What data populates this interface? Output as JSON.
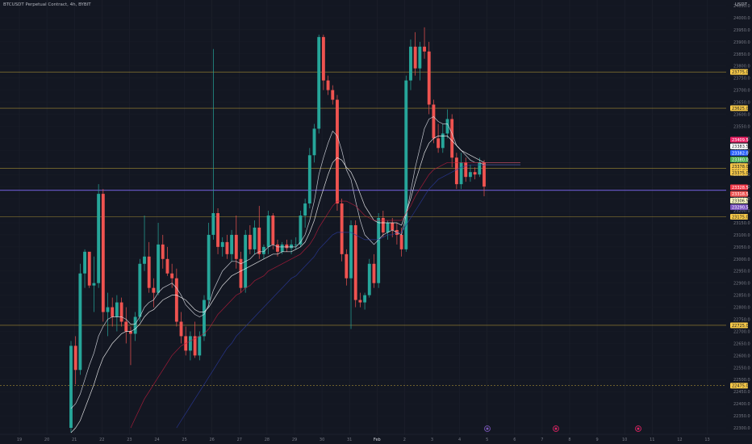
{
  "header": {
    "symbol": "BTCUSDT Perpetual Contract, 4h, BYBIT",
    "currency": "USDT"
  },
  "price_scale": {
    "ticks": [
      "24050.0",
      "24000.0",
      "23950.0",
      "23900.0",
      "23850.0",
      "23800.0",
      "23750.0",
      "23700.0",
      "23650.0",
      "23600.0",
      "23550.0",
      "23500.0",
      "23450.0",
      "23400.0",
      "23350.0",
      "23300.0",
      "23250.0",
      "23200.0",
      "23150.0",
      "23100.0",
      "23050.0",
      "23000.0",
      "22950.0",
      "22900.0",
      "22850.0",
      "22800.0",
      "22750.0",
      "22700.0",
      "22650.0",
      "22600.0",
      "22550.0",
      "22500.0",
      "22450.0",
      "22400.0",
      "22350.0",
      "22300.0"
    ],
    "tick_values": [
      24050,
      24000,
      23950,
      23900,
      23850,
      23800,
      23750,
      23700,
      23650,
      23600,
      23550,
      23500,
      23450,
      23400,
      23350,
      23300,
      23250,
      23200,
      23150,
      23100,
      23050,
      23000,
      22950,
      22900,
      22850,
      22800,
      22750,
      22700,
      22650,
      22600,
      22550,
      22500,
      22450,
      22400,
      22350,
      22300
    ]
  },
  "time_scale": {
    "labels": [
      "19",
      "20",
      "21",
      "22",
      "23",
      "24",
      "25",
      "26",
      "27",
      "28",
      "29",
      "30",
      "31",
      "Feb",
      "2",
      "3",
      "4",
      "5",
      "6",
      "7",
      "8",
      "9",
      "10",
      "11",
      "12",
      "13"
    ]
  },
  "level_lines": [
    {
      "price": 23775,
      "label": "23775.0",
      "color": "#d4b23a",
      "dashed": false
    },
    {
      "price": 23625,
      "label": "23625.0",
      "color": "#d4b23a",
      "dashed": false
    },
    {
      "price": 23375,
      "label": "23375.0",
      "color": "#d4b23a",
      "dashed": false
    },
    {
      "price": 23175,
      "label": "23175.0",
      "color": "#d4b23a",
      "dashed": false
    },
    {
      "price": 22725,
      "label": "22725.0",
      "color": "#d4b23a",
      "dashed": false
    },
    {
      "price": 22475,
      "label": "22475.0",
      "color": "#d4b23a",
      "dashed": true
    },
    {
      "price": 23285,
      "label": "",
      "color": "#6a5acd",
      "dashed": false
    }
  ],
  "price_badges": [
    {
      "label": "23409.5",
      "bg": "#e91e63",
      "fg": "#ffffff"
    },
    {
      "label": "23383.5",
      "bg": "#ffffff",
      "fg": "#131722"
    },
    {
      "label": "23382.0",
      "bg": "#2962ff",
      "fg": "#ffffff"
    },
    {
      "label": "23380.0",
      "bg": "#4caf50",
      "fg": "#ffffff"
    },
    {
      "label": "23378.0",
      "bg": "#f7c948",
      "fg": "#131722"
    },
    {
      "label": "23375.0",
      "bg": "#f7c948",
      "fg": "#131722"
    },
    {
      "label": "23328.5",
      "bg": "#f23645",
      "fg": "#ffffff"
    },
    {
      "label": "23318.5",
      "bg": "#ef5350",
      "fg": "#ffffff"
    },
    {
      "label": "23306.5",
      "bg": "#f7f7c0",
      "fg": "#131722"
    },
    {
      "label": "23290.5",
      "bg": "#7e57c2",
      "fg": "#ffffff"
    }
  ],
  "chart_data": {
    "type": "candlestick",
    "timeframe": "4h",
    "x_labels": [
      "19",
      "20",
      "21",
      "22",
      "23",
      "24",
      "25",
      "26",
      "27",
      "28",
      "29",
      "30",
      "31",
      "Feb",
      "2",
      "3",
      "4",
      "5",
      "6",
      "7",
      "8",
      "9",
      "10",
      "11",
      "12",
      "13"
    ],
    "ylim": [
      22275,
      24075
    ],
    "colors": {
      "up": "#26a69a",
      "down": "#ef5350"
    },
    "candles": [
      {
        "o": 22300,
        "h": 22660,
        "l": 22280,
        "c": 22640
      },
      {
        "o": 22640,
        "h": 22680,
        "l": 22480,
        "c": 22540
      },
      {
        "o": 22540,
        "h": 22980,
        "l": 22520,
        "c": 22940
      },
      {
        "o": 22940,
        "h": 23040,
        "l": 22880,
        "c": 23030
      },
      {
        "o": 23030,
        "h": 23020,
        "l": 22880,
        "c": 22890
      },
      {
        "o": 22890,
        "h": 23010,
        "l": 22780,
        "c": 22900
      },
      {
        "o": 22900,
        "h": 23310,
        "l": 22880,
        "c": 23270
      },
      {
        "o": 23270,
        "h": 23290,
        "l": 22740,
        "c": 22780
      },
      {
        "o": 22780,
        "h": 22860,
        "l": 22680,
        "c": 22800
      },
      {
        "o": 22800,
        "h": 22840,
        "l": 22720,
        "c": 22760
      },
      {
        "o": 22760,
        "h": 22850,
        "l": 22700,
        "c": 22820
      },
      {
        "o": 22820,
        "h": 22840,
        "l": 22720,
        "c": 22740
      },
      {
        "o": 22740,
        "h": 22800,
        "l": 22650,
        "c": 22700
      },
      {
        "o": 22700,
        "h": 22720,
        "l": 22560,
        "c": 22690
      },
      {
        "o": 22690,
        "h": 22780,
        "l": 22660,
        "c": 22760
      },
      {
        "o": 22760,
        "h": 23000,
        "l": 22740,
        "c": 22980
      },
      {
        "o": 22980,
        "h": 23180,
        "l": 22950,
        "c": 23010
      },
      {
        "o": 23010,
        "h": 23070,
        "l": 22860,
        "c": 22880
      },
      {
        "o": 22880,
        "h": 22920,
        "l": 22800,
        "c": 22860
      },
      {
        "o": 22860,
        "h": 23150,
        "l": 22850,
        "c": 23060
      },
      {
        "o": 23060,
        "h": 23100,
        "l": 22960,
        "c": 23000
      },
      {
        "o": 23000,
        "h": 23050,
        "l": 22930,
        "c": 22940
      },
      {
        "o": 22940,
        "h": 22980,
        "l": 22880,
        "c": 22920
      },
      {
        "o": 22920,
        "h": 22960,
        "l": 22720,
        "c": 22740
      },
      {
        "o": 22740,
        "h": 22780,
        "l": 22650,
        "c": 22680
      },
      {
        "o": 22680,
        "h": 22720,
        "l": 22600,
        "c": 22620
      },
      {
        "o": 22620,
        "h": 22700,
        "l": 22580,
        "c": 22680
      },
      {
        "o": 22680,
        "h": 22740,
        "l": 22590,
        "c": 22600
      },
      {
        "o": 22600,
        "h": 22700,
        "l": 22580,
        "c": 22680
      },
      {
        "o": 22680,
        "h": 22850,
        "l": 22660,
        "c": 22830
      },
      {
        "o": 22830,
        "h": 23150,
        "l": 22800,
        "c": 23100
      },
      {
        "o": 23100,
        "h": 23870,
        "l": 23080,
        "c": 23190
      },
      {
        "o": 23190,
        "h": 23210,
        "l": 23020,
        "c": 23050
      },
      {
        "o": 23050,
        "h": 23090,
        "l": 23010,
        "c": 23070
      },
      {
        "o": 23070,
        "h": 23100,
        "l": 23000,
        "c": 23020
      },
      {
        "o": 23020,
        "h": 23120,
        "l": 22990,
        "c": 23100
      },
      {
        "o": 23100,
        "h": 23180,
        "l": 22960,
        "c": 23000
      },
      {
        "o": 23000,
        "h": 23030,
        "l": 22860,
        "c": 22880
      },
      {
        "o": 22880,
        "h": 23120,
        "l": 22860,
        "c": 23100
      },
      {
        "o": 23100,
        "h": 23140,
        "l": 23020,
        "c": 23040
      },
      {
        "o": 23040,
        "h": 23160,
        "l": 23020,
        "c": 23130
      },
      {
        "o": 23130,
        "h": 23220,
        "l": 23000,
        "c": 23020
      },
      {
        "o": 23020,
        "h": 23060,
        "l": 23000,
        "c": 23050
      },
      {
        "o": 23050,
        "h": 23200,
        "l": 23020,
        "c": 23180
      },
      {
        "o": 23180,
        "h": 23190,
        "l": 23040,
        "c": 23060
      },
      {
        "o": 23060,
        "h": 23080,
        "l": 23010,
        "c": 23030
      },
      {
        "o": 23030,
        "h": 23070,
        "l": 23020,
        "c": 23060
      },
      {
        "o": 23060,
        "h": 23080,
        "l": 23030,
        "c": 23045
      },
      {
        "o": 23045,
        "h": 23080,
        "l": 23020,
        "c": 23060
      },
      {
        "o": 23060,
        "h": 23090,
        "l": 23040,
        "c": 23060
      },
      {
        "o": 23060,
        "h": 23200,
        "l": 23050,
        "c": 23180
      },
      {
        "o": 23180,
        "h": 23250,
        "l": 23130,
        "c": 23230
      },
      {
        "o": 23230,
        "h": 23460,
        "l": 23210,
        "c": 23430
      },
      {
        "o": 23430,
        "h": 23560,
        "l": 23400,
        "c": 23540
      },
      {
        "o": 23540,
        "h": 23930,
        "l": 23520,
        "c": 23920
      },
      {
        "o": 23920,
        "h": 23930,
        "l": 23700,
        "c": 23740
      },
      {
        "o": 23740,
        "h": 23760,
        "l": 23680,
        "c": 23700
      },
      {
        "o": 23700,
        "h": 23720,
        "l": 23640,
        "c": 23660
      },
      {
        "o": 23660,
        "h": 23680,
        "l": 23200,
        "c": 23230
      },
      {
        "o": 23230,
        "h": 23250,
        "l": 22990,
        "c": 23020
      },
      {
        "o": 23020,
        "h": 23040,
        "l": 22890,
        "c": 22920
      },
      {
        "o": 22920,
        "h": 23160,
        "l": 22710,
        "c": 23140
      },
      {
        "o": 23140,
        "h": 23160,
        "l": 22800,
        "c": 22830
      },
      {
        "o": 22830,
        "h": 22860,
        "l": 22800,
        "c": 22820
      },
      {
        "o": 22820,
        "h": 22860,
        "l": 22790,
        "c": 22850
      },
      {
        "o": 22850,
        "h": 23000,
        "l": 22840,
        "c": 22980
      },
      {
        "o": 22980,
        "h": 23020,
        "l": 22880,
        "c": 22900
      },
      {
        "o": 22900,
        "h": 23190,
        "l": 22880,
        "c": 23170
      },
      {
        "o": 23170,
        "h": 23200,
        "l": 23090,
        "c": 23110
      },
      {
        "o": 23110,
        "h": 23160,
        "l": 23080,
        "c": 23150
      },
      {
        "o": 23150,
        "h": 23170,
        "l": 23090,
        "c": 23120
      },
      {
        "o": 23120,
        "h": 23150,
        "l": 23060,
        "c": 23100
      },
      {
        "o": 23100,
        "h": 23130,
        "l": 23010,
        "c": 23040
      },
      {
        "o": 23040,
        "h": 23760,
        "l": 23030,
        "c": 23740
      },
      {
        "o": 23740,
        "h": 23910,
        "l": 23700,
        "c": 23880
      },
      {
        "o": 23880,
        "h": 23940,
        "l": 23760,
        "c": 23790
      },
      {
        "o": 23790,
        "h": 23900,
        "l": 23740,
        "c": 23880
      },
      {
        "o": 23880,
        "h": 23960,
        "l": 23830,
        "c": 23860
      },
      {
        "o": 23860,
        "h": 23900,
        "l": 23600,
        "c": 23640
      },
      {
        "o": 23640,
        "h": 23660,
        "l": 23480,
        "c": 23500
      },
      {
        "o": 23500,
        "h": 23560,
        "l": 23440,
        "c": 23460
      },
      {
        "o": 23460,
        "h": 23560,
        "l": 23440,
        "c": 23520
      },
      {
        "o": 23520,
        "h": 23620,
        "l": 23500,
        "c": 23580
      },
      {
        "o": 23580,
        "h": 23600,
        "l": 23380,
        "c": 23420
      },
      {
        "o": 23420,
        "h": 23440,
        "l": 23290,
        "c": 23310
      },
      {
        "o": 23310,
        "h": 23440,
        "l": 23290,
        "c": 23400
      },
      {
        "o": 23400,
        "h": 23420,
        "l": 23320,
        "c": 23340
      },
      {
        "o": 23340,
        "h": 23390,
        "l": 23320,
        "c": 23360
      },
      {
        "o": 23360,
        "h": 23380,
        "l": 23330,
        "c": 23350
      },
      {
        "o": 23350,
        "h": 23420,
        "l": 23340,
        "c": 23400
      },
      {
        "o": 23400,
        "h": 23410,
        "l": 23260,
        "c": 23300
      }
    ],
    "moving_averages": [
      {
        "name": "",
        "color": "#e0e3eb",
        "values": [
          22380,
          22400,
          22440,
          22500,
          22560,
          22610,
          22680,
          22720,
          22750,
          22760,
          22760,
          22760,
          22750,
          22730,
          22730,
          22760,
          22800,
          22820,
          22830,
          22860,
          22880,
          22890,
          22900,
          22880,
          22850,
          22810,
          22790,
          22770,
          22760,
          22770,
          22810,
          22870,
          22910,
          22950,
          22970,
          22990,
          22990,
          22980,
          22990,
          23000,
          23020,
          23030,
          23030,
          23050,
          23060,
          23050,
          23050,
          23050,
          23050,
          23050,
          23070,
          23100,
          23160,
          23240,
          23350,
          23420,
          23480,
          23530,
          23510,
          23450,
          23370,
          23330,
          23240,
          23160,
          23100,
          23080,
          23060,
          23080,
          23100,
          23110,
          23120,
          23110,
          23100,
          23180,
          23280,
          23380,
          23460,
          23540,
          23580,
          23590,
          23570,
          23560,
          23560,
          23520,
          23470,
          23450,
          23430,
          23410,
          23400,
          23400,
          23390
        ]
      },
      {
        "name": "",
        "color": "#ffffff",
        "values": [
          22280,
          22300,
          22330,
          22380,
          22430,
          22480,
          22540,
          22590,
          22620,
          22650,
          22670,
          22690,
          22700,
          22700,
          22710,
          22730,
          22760,
          22780,
          22790,
          22810,
          22830,
          22840,
          22850,
          22850,
          22840,
          22830,
          22810,
          22790,
          22780,
          22780,
          22800,
          22830,
          22860,
          22890,
          22910,
          22930,
          22940,
          22950,
          22960,
          22970,
          22980,
          22990,
          23000,
          23010,
          23020,
          23020,
          23030,
          23030,
          23030,
          23040,
          23050,
          23070,
          23110,
          23160,
          23230,
          23290,
          23350,
          23400,
          23420,
          23410,
          23380,
          23360,
          23320,
          23270,
          23220,
          23190,
          23160,
          23150,
          23150,
          23150,
          23150,
          23150,
          23140,
          23190,
          23250,
          23320,
          23380,
          23440,
          23480,
          23500,
          23510,
          23510,
          23510,
          23490,
          23470,
          23450,
          23440,
          23430,
          23420,
          23410,
          23400
        ]
      },
      {
        "name": "",
        "color": "#b71c3c",
        "values": [
          null,
          null,
          null,
          null,
          null,
          null,
          null,
          null,
          null,
          null,
          null,
          null,
          null,
          22300,
          22340,
          22380,
          22420,
          22450,
          22480,
          22510,
          22540,
          22570,
          22600,
          22620,
          22640,
          22650,
          22660,
          22670,
          22680,
          22690,
          22710,
          22740,
          22770,
          22790,
          22810,
          22830,
          22850,
          22860,
          22880,
          22890,
          22910,
          22920,
          22930,
          22950,
          22960,
          22970,
          22980,
          22990,
          23000,
          23010,
          23020,
          23040,
          23060,
          23090,
          23130,
          23160,
          23190,
          23220,
          23240,
          23240,
          23240,
          23230,
          23220,
          23200,
          23180,
          23170,
          23160,
          23160,
          23160,
          23160,
          23160,
          23160,
          23160,
          23190,
          23220,
          23260,
          23290,
          23320,
          23350,
          23370,
          23380,
          23390,
          23400,
          23400,
          23400,
          23400,
          23400,
          23400,
          23400,
          23400,
          23400
        ]
      },
      {
        "name": "",
        "color": "#2a3a9c",
        "values": [
          null,
          null,
          null,
          null,
          null,
          null,
          null,
          null,
          null,
          null,
          null,
          null,
          null,
          null,
          null,
          null,
          null,
          null,
          null,
          null,
          null,
          null,
          null,
          22300,
          22330,
          22360,
          22390,
          22420,
          22450,
          22480,
          22510,
          22540,
          22570,
          22600,
          22630,
          22650,
          22680,
          22700,
          22720,
          22740,
          22760,
          22780,
          22800,
          22820,
          22840,
          22860,
          22880,
          22900,
          22920,
          22930,
          22950,
          22970,
          22990,
          23010,
          23040,
          23060,
          23080,
          23100,
          23110,
          23110,
          23110,
          23110,
          23100,
          23090,
          23080,
          23080,
          23080,
          23080,
          23090,
          23100,
          23100,
          23110,
          23110,
          23140,
          23170,
          23200,
          23230,
          23260,
          23290,
          23310,
          23330,
          23340,
          23350,
          23360,
          23370,
          23380,
          23385,
          23390,
          23390,
          23390,
          23390
        ]
      }
    ]
  }
}
